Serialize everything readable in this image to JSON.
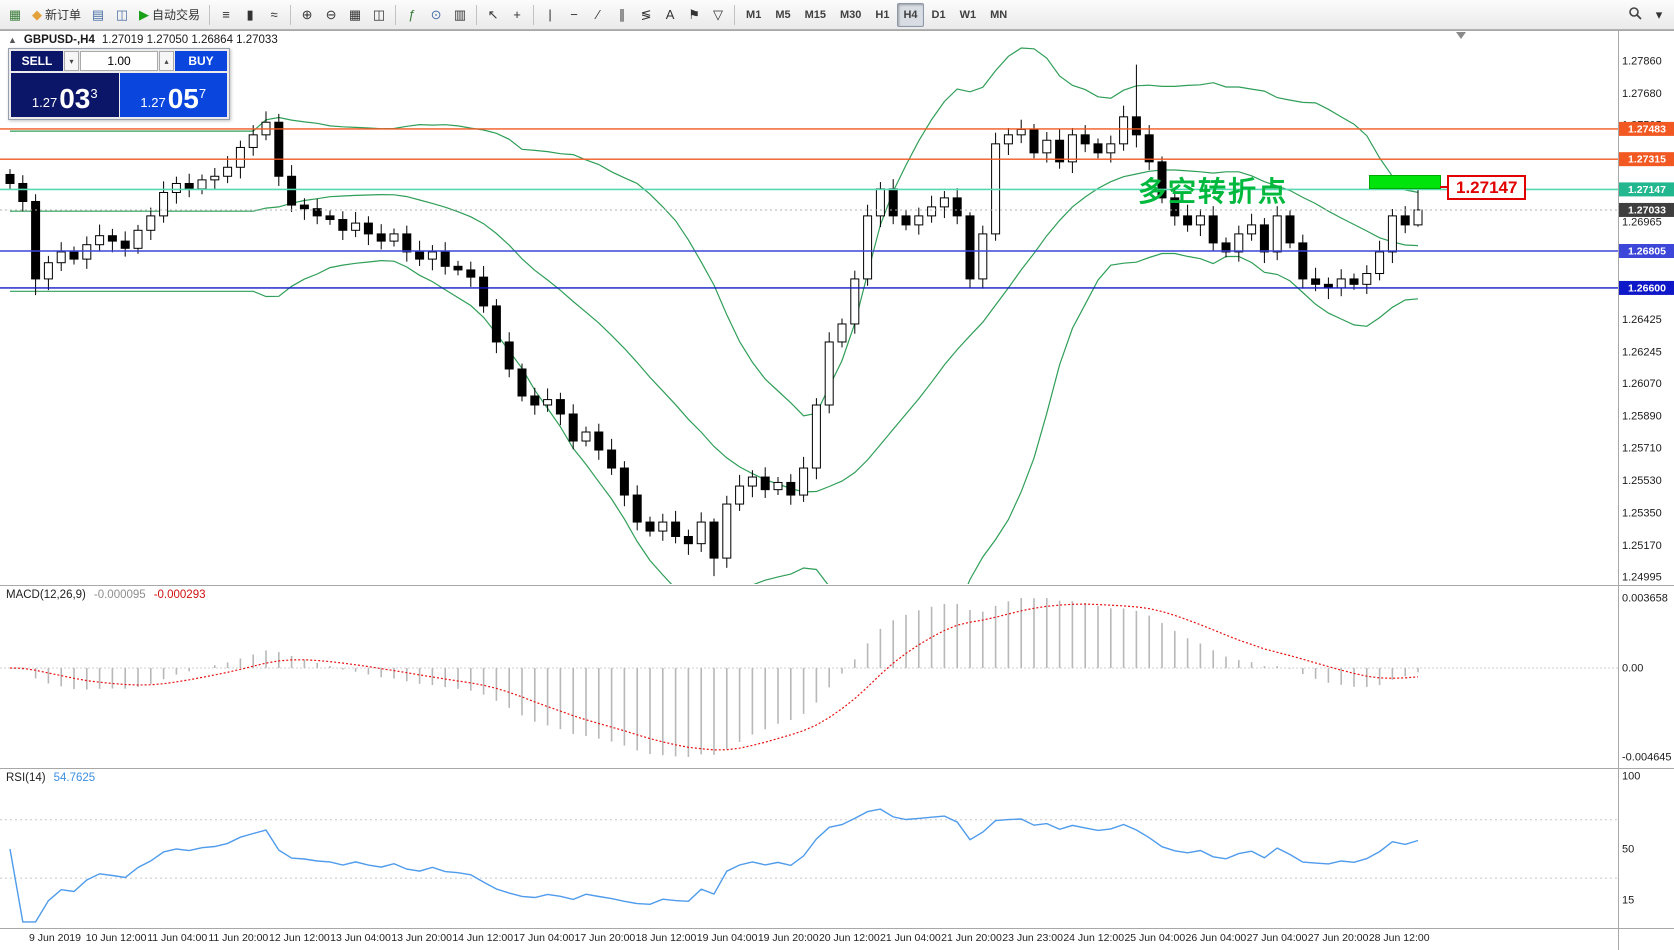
{
  "toolbar": {
    "groups": [
      [
        {
          "name": "new-chart-button",
          "glyph": "▦",
          "color": "#3a7d3a"
        },
        {
          "name": "new-order-button",
          "glyph": "◆",
          "color": "#e2a13b",
          "label": "新订单"
        },
        {
          "name": "profiles-button",
          "glyph": "▤",
          "color": "#4a6fa5"
        },
        {
          "name": "market-watch-button",
          "glyph": "◫",
          "color": "#4a6fa5"
        },
        {
          "name": "auto-trading-button",
          "glyph": "▶",
          "color": "#18a018",
          "label": "自动交易"
        }
      ],
      [
        {
          "name": "bar-chart-type-button",
          "glyph": "≡"
        },
        {
          "name": "candlestick-chart-type-button",
          "glyph": "▮"
        },
        {
          "name": "line-chart-type-button",
          "glyph": "≈"
        }
      ],
      [
        {
          "name": "zoom-in-button",
          "glyph": "⊕"
        },
        {
          "name": "zoom-out-button",
          "glyph": "⊖"
        },
        {
          "name": "tile-windows-button",
          "glyph": "▦"
        },
        {
          "name": "cascade-windows-button",
          "glyph": "◫"
        }
      ],
      [
        {
          "name": "indicators-button",
          "glyph": "ƒ",
          "color": "#3a7d3a"
        },
        {
          "name": "periods-button",
          "glyph": "⊙",
          "color": "#4a6fa5"
        },
        {
          "name": "templates-button",
          "glyph": "▥"
        }
      ],
      [
        {
          "name": "cursor-button",
          "glyph": "↖"
        },
        {
          "name": "crosshair-button",
          "glyph": "+"
        }
      ],
      [
        {
          "name": "vertical-line-button",
          "glyph": "|"
        },
        {
          "name": "horizontal-line-button",
          "glyph": "−"
        },
        {
          "name": "trendline-button",
          "glyph": "∕"
        },
        {
          "name": "equidistant-channel-button",
          "glyph": "∥"
        },
        {
          "name": "fibonacci-button",
          "glyph": "≶"
        },
        {
          "name": "text-button",
          "glyph": "A"
        },
        {
          "name": "label-button",
          "glyph": "⚑"
        },
        {
          "name": "shapes-button",
          "glyph": "▽"
        }
      ],
      [
        {
          "name": "timeframe-m1-button",
          "label": "M1",
          "tf": true
        },
        {
          "name": "timeframe-m5-button",
          "label": "M5",
          "tf": true
        },
        {
          "name": "timeframe-m15-button",
          "label": "M15",
          "tf": true
        },
        {
          "name": "timeframe-m30-button",
          "label": "M30",
          "tf": true
        },
        {
          "name": "timeframe-h1-button",
          "label": "H1",
          "tf": true
        },
        {
          "name": "timeframe-h4-button",
          "label": "H4",
          "tf": true,
          "active": true
        },
        {
          "name": "timeframe-d1-button",
          "label": "D1",
          "tf": true
        },
        {
          "name": "timeframe-w1-button",
          "label": "W1",
          "tf": true
        },
        {
          "name": "timeframe-mn-button",
          "label": "MN",
          "tf": true
        }
      ]
    ],
    "right": [
      {
        "name": "search-symbol-button",
        "svg": "magnifier"
      },
      {
        "name": "toolbar-overflow-button",
        "glyph": "▾"
      }
    ]
  },
  "chart": {
    "collapse_glyph": "▲",
    "header_symbol": "GBPUSD-,H4",
    "header_ohlc": "1.27019 1.27050 1.26864 1.27033",
    "annotation": {
      "text": "多空转折点"
    },
    "price_tag": {
      "text": "1.27147"
    },
    "levels": [
      {
        "price": 1.27483,
        "label": "1.27483",
        "color": "#f25822",
        "width": 1.4
      },
      {
        "price": 1.27315,
        "label": "1.27315",
        "color": "#f25822",
        "width": 1.4
      },
      {
        "price": 1.27147,
        "label": "1.27147",
        "color": "#23b78f",
        "line_color": "#57d9b2",
        "width": 1.6
      },
      {
        "price": 1.27033,
        "label": "1.27033",
        "color": "#3f3f3f",
        "dashed": true
      },
      {
        "price": 1.26805,
        "label": "1.26805",
        "color": "#3c46d8",
        "width": 1.4
      },
      {
        "price": 1.266,
        "label": "1.26600",
        "color": "#0f18c8",
        "width": 1.4
      }
    ],
    "axis_labels": [
      "1.27860",
      "1.27680",
      "1.27505",
      "1.27325",
      "1.27145",
      "1.26965",
      "1.26785",
      "1.26605",
      "1.26425",
      "1.26245",
      "1.26070",
      "1.25890",
      "1.25710",
      "1.25530",
      "1.25350",
      "1.25170",
      "1.24995"
    ],
    "time_labels": [
      "9 Jun 2019",
      "10 Jun 12:00",
      "11 Jun 04:00",
      "11 Jun 20:00",
      "12 Jun 12:00",
      "13 Jun 04:00",
      "13 Jun 20:00",
      "14 Jun 12:00",
      "17 Jun 04:00",
      "17 Jun 20:00",
      "18 Jun 12:00",
      "19 Jun 04:00",
      "19 Jun 20:00",
      "20 Jun 12:00",
      "21 Jun 04:00",
      "21 Jun 20:00",
      "23 Jun 23:00",
      "24 Jun 12:00",
      "25 Jun 04:00",
      "26 Jun 04:00",
      "27 Jun 04:00",
      "27 Jun 20:00",
      "28 Jun 12:00"
    ]
  },
  "trade_panel": {
    "sell_label": "SELL",
    "buy_label": "BUY",
    "volume": "1.00",
    "down_glyph": "▾",
    "up_glyph": "▴",
    "sell_price_prefix": "1.27",
    "sell_price_big": "03",
    "sell_price_sup": "3",
    "buy_price_prefix": "1.27",
    "buy_price_big": "05",
    "buy_price_sup": "7"
  },
  "macd": {
    "label": "MACD(12,26,9)",
    "value_main": "-0.000095",
    "value_signal": "-0.000293",
    "axis": [
      "0.003658",
      "0.00",
      "-0.004645"
    ]
  },
  "rsi": {
    "label": "RSI(14)",
    "value": "54.7625",
    "axis": [
      "100",
      "50",
      "15"
    ]
  },
  "colors": {
    "buy": "#0a46dd",
    "sell": "#0c1668",
    "annotation_green": "#00b83c",
    "highlight_green": "#00e40c",
    "tag_red": "#e00000",
    "bollinger": "#2f9e57",
    "macd_hist": "#b8b8b8",
    "macd_signal": "#e81212",
    "rsi_line": "#4f9bec",
    "last_price": "#3f3f3f"
  },
  "chart_data": {
    "type": "candlestick",
    "symbol": "GBPUSD",
    "timeframe": "H4",
    "ylim": [
      1.2495,
      1.2802
    ],
    "first_open": 1.2723,
    "closes": [
      1.2718,
      1.2708,
      1.2665,
      1.2674,
      1.268,
      1.2676,
      1.2684,
      1.2689,
      1.2686,
      1.2682,
      1.2692,
      1.27,
      1.2713,
      1.2718,
      1.2715,
      1.272,
      1.2722,
      1.2727,
      1.2738,
      1.2745,
      1.2752,
      1.2722,
      1.2706,
      1.2704,
      1.27,
      1.2698,
      1.2692,
      1.2696,
      1.269,
      1.2686,
      1.269,
      1.268,
      1.2676,
      1.268,
      1.2672,
      1.267,
      1.2666,
      1.265,
      1.263,
      1.2615,
      1.26,
      1.2595,
      1.2598,
      1.259,
      1.2575,
      1.258,
      1.257,
      1.256,
      1.2545,
      1.253,
      1.2525,
      1.253,
      1.2522,
      1.2518,
      1.253,
      1.251,
      1.254,
      1.255,
      1.2555,
      1.2548,
      1.2552,
      1.2545,
      1.256,
      1.2595,
      1.263,
      1.264,
      1.2665,
      1.27,
      1.2715,
      1.27,
      1.2695,
      1.27,
      1.2705,
      1.271,
      1.27,
      1.2665,
      1.269,
      1.274,
      1.2745,
      1.2748,
      1.2735,
      1.2742,
      1.273,
      1.2745,
      1.274,
      1.2735,
      1.274,
      1.2755,
      1.2745,
      1.273,
      1.271,
      1.27,
      1.2695,
      1.27,
      1.2685,
      1.268,
      1.269,
      1.2695,
      1.268,
      1.27,
      1.2685,
      1.2665,
      1.2662,
      1.266,
      1.2665,
      1.2662,
      1.2668,
      1.268,
      1.27,
      1.2695,
      1.27033
    ],
    "wick_overrides": {
      "2": [
        1.2712,
        1.2656
      ],
      "20": [
        1.2758,
        1.2742
      ],
      "55": [
        1.2532,
        1.25
      ],
      "75": [
        1.2702,
        1.266
      ],
      "88": [
        1.2784,
        1.2738
      ],
      "110": [
        1.2722,
        1.2694
      ]
    },
    "bollinger": {
      "period": 20,
      "deviation": 2
    },
    "macd_params": {
      "fast": 12,
      "slow": 26,
      "signal": 9
    },
    "rsi_params": {
      "period": 14
    }
  }
}
